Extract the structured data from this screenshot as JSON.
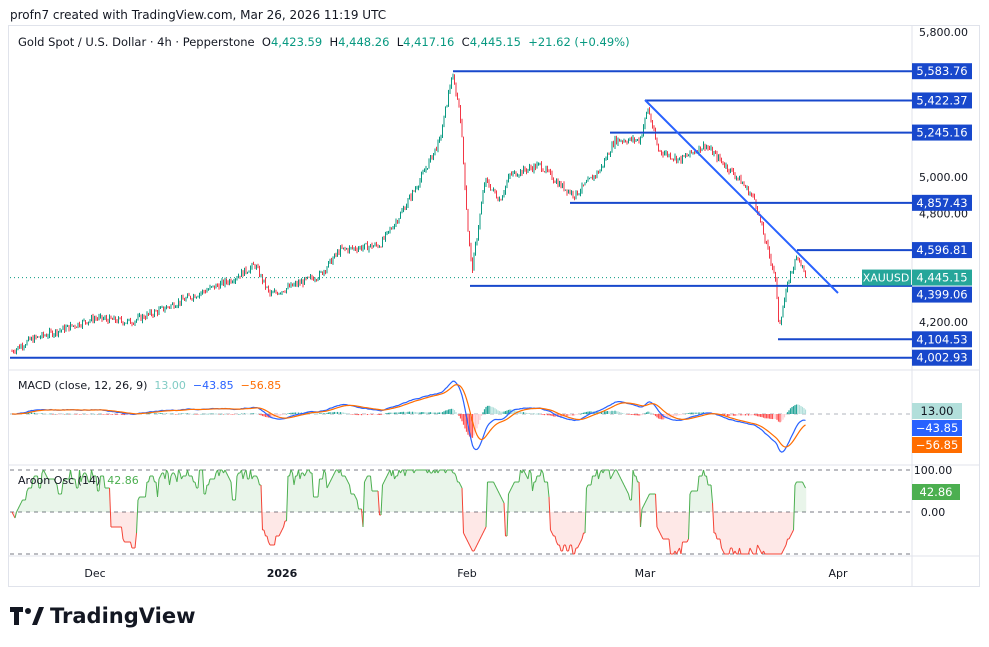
{
  "credit": "profn7 created with TradingView.com, Mar 26, 2026 11:19 UTC",
  "legend": {
    "title": "Gold Spot / U.S. Dollar · 4h · Pepperstone",
    "o_label": "O",
    "o": "4,423.59",
    "h_label": "H",
    "h": "4,448.26",
    "l_label": "L",
    "l": "4,417.16",
    "c_label": "C",
    "c": "4,445.15",
    "change": "+21.62 (+0.49%)"
  },
  "symbol_badge": "XAUUSD",
  "last_price": "4,445.15",
  "colors": {
    "up": "#089981",
    "down": "#f23645",
    "level": "#1848cc",
    "macd": "#2962ff",
    "signal": "#ff6d00",
    "aroon_up": "#4caf50",
    "aroon_down": "#f44336"
  },
  "macd": {
    "label": "MACD (close, 12, 26, 9)",
    "hist": "13.00",
    "macd": "−43.85",
    "signal": "−56.85"
  },
  "aroon": {
    "label": "Aroon Osc (14)",
    "value": "42.86",
    "ticks": [
      "100.00",
      "0.00"
    ]
  },
  "footer_logo": "TradingView",
  "chart_data": {
    "type": "candlestick",
    "timeframe": "4h",
    "price_axis_ticks": [
      "5,800.00",
      "5,000.00",
      "4,800.00",
      "4,200.00"
    ],
    "time_axis_ticks": [
      "Dec",
      "2026",
      "Feb",
      "Mar",
      "Apr"
    ],
    "levels": [
      {
        "label": "5,583.76",
        "value": 5583.76,
        "from": "Jan 29"
      },
      {
        "label": "5,422.37",
        "value": 5422.37,
        "from": "Mar 2"
      },
      {
        "label": "5,245.16",
        "value": 5245.16,
        "from": "Feb 25"
      },
      {
        "label": "4,857.43",
        "value": 4857.43,
        "from": "Feb 18"
      },
      {
        "label": "4,596.81",
        "value": 4596.81,
        "from": "Mar 23"
      },
      {
        "label": "4,399.06",
        "value": 4399.06,
        "from": "Feb 2"
      },
      {
        "label": "4,104.53",
        "value": 4104.53,
        "from": "Mar 20"
      },
      {
        "label": "4,002.93",
        "value": 4002.93,
        "from": "Nov 17"
      }
    ],
    "trendline": {
      "from": [
        "Mar 2",
        5400
      ],
      "to": [
        "Mar 31",
        4380
      ]
    },
    "price_path": [
      [
        12,
        4040
      ],
      [
        30,
        4100
      ],
      [
        60,
        4155
      ],
      [
        95,
        4222
      ],
      [
        130,
        4200
      ],
      [
        160,
        4265
      ],
      [
        190,
        4338
      ],
      [
        230,
        4430
      ],
      [
        255,
        4514
      ],
      [
        270,
        4350
      ],
      [
        300,
        4415
      ],
      [
        320,
        4460
      ],
      [
        340,
        4597
      ],
      [
        380,
        4625
      ],
      [
        400,
        4790
      ],
      [
        420,
        4983
      ],
      [
        440,
        5204
      ],
      [
        452,
        5563
      ],
      [
        460,
        5370
      ],
      [
        468,
        4707
      ],
      [
        472,
        4480
      ],
      [
        485,
        4983
      ],
      [
        500,
        4873
      ],
      [
        510,
        5011
      ],
      [
        540,
        5066
      ],
      [
        560,
        4956
      ],
      [
        575,
        4900
      ],
      [
        600,
        5038
      ],
      [
        615,
        5204
      ],
      [
        640,
        5204
      ],
      [
        648,
        5380
      ],
      [
        658,
        5149
      ],
      [
        680,
        5094
      ],
      [
        705,
        5176
      ],
      [
        720,
        5094
      ],
      [
        740,
        4983
      ],
      [
        755,
        4873
      ],
      [
        765,
        4652
      ],
      [
        775,
        4460
      ],
      [
        779,
        4180
      ],
      [
        790,
        4460
      ],
      [
        798,
        4570
      ],
      [
        806,
        4445.15
      ]
    ]
  }
}
